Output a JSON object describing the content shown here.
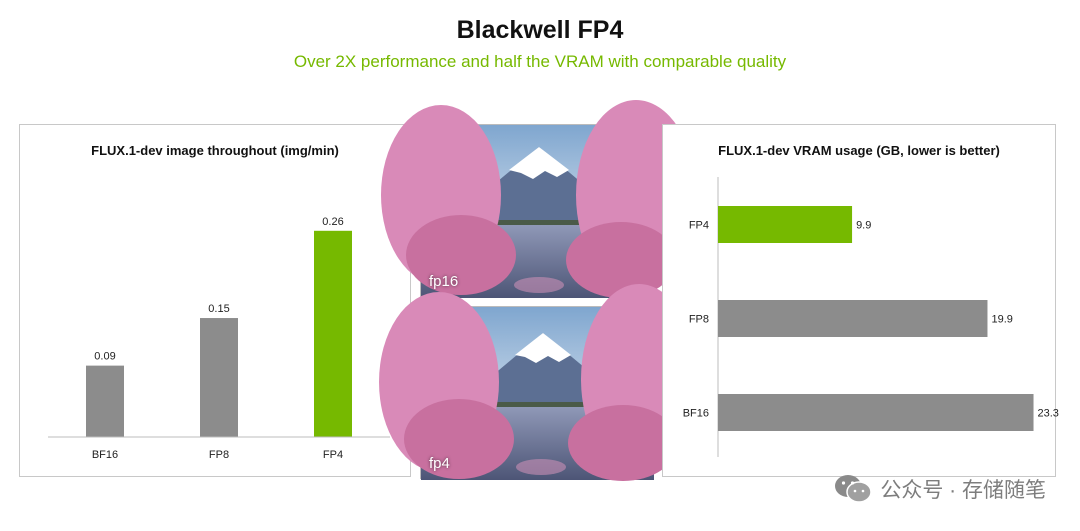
{
  "header": {
    "title": "Blackwell FP4",
    "subtitle": "Over 2X performance and half the VRAM with comparable quality"
  },
  "throughput_panel": {
    "title": "FLUX.1-dev image throughout (img/min)"
  },
  "vram_panel": {
    "title": "FLUX.1-dev VRAM usage (GB, lower is better)"
  },
  "images": [
    {
      "label": "fp16"
    },
    {
      "label": "fp4"
    }
  ],
  "watermark": {
    "text": "公众号 · 存储随笔",
    "icon": "wechat-icon"
  },
  "colors": {
    "accent_green": "#76b900",
    "bar_gray": "#8c8c8c"
  },
  "chart_data": [
    {
      "type": "bar",
      "orientation": "vertical",
      "title": "FLUX.1-dev image throughout (img/min)",
      "categories": [
        "BF16",
        "FP8",
        "FP4"
      ],
      "values": [
        0.09,
        0.15,
        0.26
      ],
      "value_labels": [
        "0.09",
        "0.15",
        "0.26"
      ],
      "ylim": [
        0,
        0.29
      ],
      "grid": false,
      "bar_colors": [
        "#8c8c8c",
        "#8c8c8c",
        "#76b900"
      ]
    },
    {
      "type": "bar",
      "orientation": "horizontal",
      "title": "FLUX.1-dev VRAM usage (GB, lower is better)",
      "categories": [
        "FP4",
        "FP8",
        "BF16"
      ],
      "values": [
        9.9,
        19.9,
        23.3
      ],
      "value_labels": [
        "9.9",
        "19.9",
        "23.3"
      ],
      "xlim": [
        0,
        24
      ],
      "grid": false,
      "bar_colors": [
        "#76b900",
        "#8c8c8c",
        "#8c8c8c"
      ]
    }
  ]
}
